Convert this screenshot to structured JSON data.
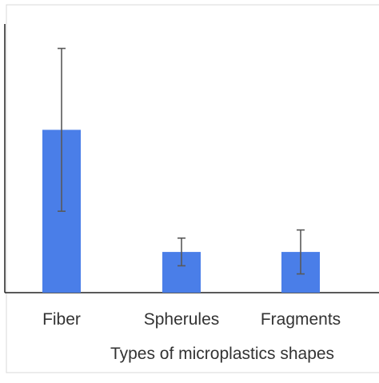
{
  "chart_data": {
    "type": "bar",
    "title": "",
    "xlabel": "Types of microplastics shapes",
    "ylabel": "",
    "categories": [
      "Fiber",
      "Spherules",
      "Fragments"
    ],
    "series": [
      {
        "values": [
          200,
          50,
          50
        ],
        "error": [
          100,
          17,
          27
        ]
      }
    ],
    "ylim": [
      0,
      330
    ],
    "grid": false,
    "legend": "none",
    "colors": {
      "bar": "#4a7ee8",
      "error_bar": "#595959",
      "axis": "#222222",
      "frame": "#d9d9d9",
      "text": "#333333"
    }
  }
}
